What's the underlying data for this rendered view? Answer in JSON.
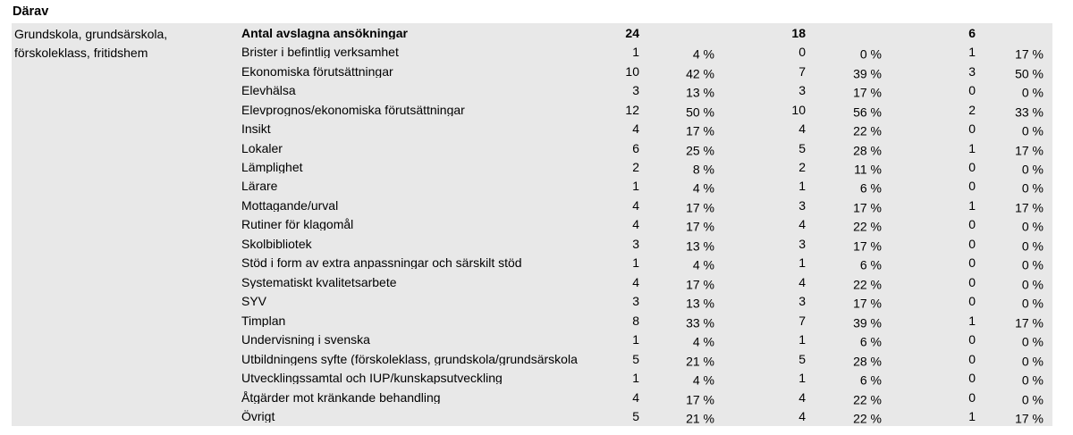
{
  "heading": "Därav",
  "table": {
    "group_label_lines": [
      "Grundskola, grundsärskola,",
      "förskoleklass, fritidshem"
    ],
    "header": {
      "label": "Antal avslagna ansökningar",
      "totals": [
        "24",
        "18",
        "6"
      ]
    },
    "rows": [
      {
        "label": "Brister i befintlig verksamhet",
        "cells": [
          "1",
          "4 %",
          "0",
          "0 %",
          "1",
          "17 %"
        ]
      },
      {
        "label": "Ekonomiska förutsättningar",
        "cells": [
          "10",
          "42 %",
          "7",
          "39 %",
          "3",
          "50 %"
        ]
      },
      {
        "label": "Elevhälsa",
        "cells": [
          "3",
          "13 %",
          "3",
          "17 %",
          "0",
          "0 %"
        ]
      },
      {
        "label": "Elevprognos/ekonomiska förutsättningar",
        "cells": [
          "12",
          "50 %",
          "10",
          "56 %",
          "2",
          "33 %"
        ]
      },
      {
        "label": "Insikt",
        "cells": [
          "4",
          "17 %",
          "4",
          "22 %",
          "0",
          "0 %"
        ]
      },
      {
        "label": "Lokaler",
        "cells": [
          "6",
          "25 %",
          "5",
          "28 %",
          "1",
          "17 %"
        ]
      },
      {
        "label": "Lämplighet",
        "cells": [
          "2",
          "8 %",
          "2",
          "11 %",
          "0",
          "0 %"
        ]
      },
      {
        "label": "Lärare",
        "cells": [
          "1",
          "4 %",
          "1",
          "6 %",
          "0",
          "0 %"
        ]
      },
      {
        "label": "Mottagande/urval",
        "cells": [
          "4",
          "17 %",
          "3",
          "17 %",
          "1",
          "17 %"
        ]
      },
      {
        "label": "Rutiner för klagomål",
        "cells": [
          "4",
          "17 %",
          "4",
          "22 %",
          "0",
          "0 %"
        ]
      },
      {
        "label": "Skolbibliotek",
        "cells": [
          "3",
          "13 %",
          "3",
          "17 %",
          "0",
          "0 %"
        ]
      },
      {
        "label": "Stöd i form av extra anpassningar och särskilt stöd",
        "cells": [
          "1",
          "4 %",
          "1",
          "6 %",
          "0",
          "0 %"
        ]
      },
      {
        "label": "Systematiskt kvalitetsarbete",
        "cells": [
          "4",
          "17 %",
          "4",
          "22 %",
          "0",
          "0 %"
        ]
      },
      {
        "label": "SYV",
        "cells": [
          "3",
          "13 %",
          "3",
          "17 %",
          "0",
          "0 %"
        ]
      },
      {
        "label": "Timplan",
        "cells": [
          "8",
          "33 %",
          "7",
          "39 %",
          "1",
          "17 %"
        ]
      },
      {
        "label": "Undervisning i svenska",
        "cells": [
          "1",
          "4 %",
          "1",
          "6 %",
          "0",
          "0 %"
        ]
      },
      {
        "label": "Utbildningens syfte (förskoleklass, grundskola/grundsärskola",
        "cells": [
          "5",
          "21 %",
          "5",
          "28 %",
          "0",
          "0 %"
        ]
      },
      {
        "label": "Utvecklingssamtal och IUP/kunskapsutveckling",
        "cells": [
          "1",
          "4 %",
          "1",
          "6 %",
          "0",
          "0 %"
        ]
      },
      {
        "label": "Åtgärder mot kränkande behandling",
        "cells": [
          "4",
          "17 %",
          "4",
          "22 %",
          "0",
          "0 %"
        ]
      },
      {
        "label": "Övrigt",
        "cells": [
          "5",
          "21 %",
          "4",
          "22 %",
          "1",
          "17 %"
        ]
      }
    ],
    "colors": {
      "table_background": "#e8e8e8",
      "text": "#000000",
      "page_background": "#ffffff"
    }
  }
}
